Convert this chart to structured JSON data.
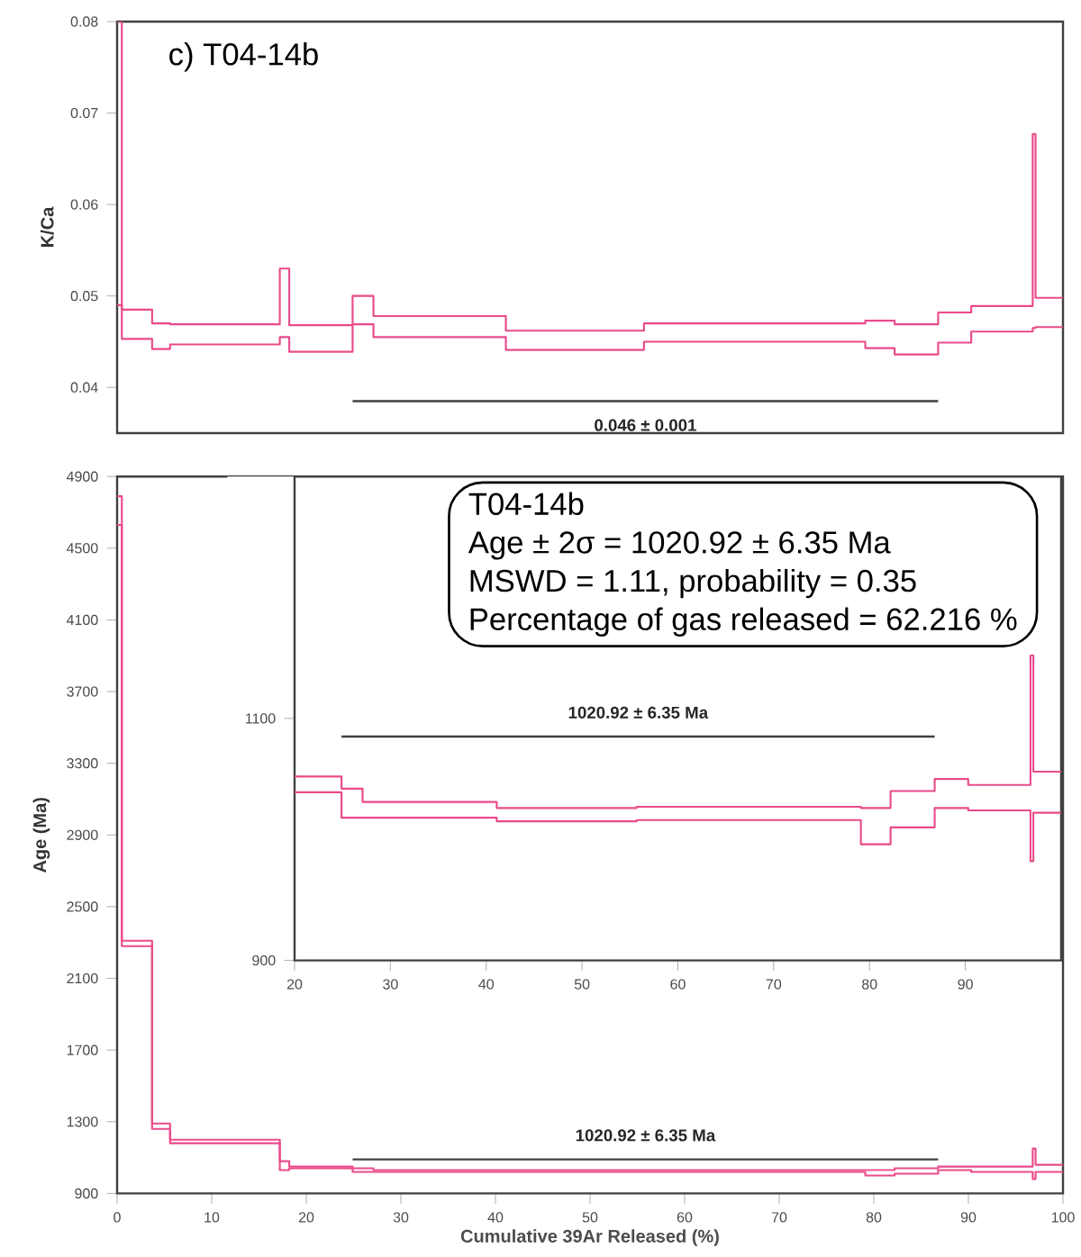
{
  "chart_data": [
    {
      "type": "step",
      "title": "c) T04-14b",
      "ylabel": "K/Ca",
      "xlim": [
        0,
        100
      ],
      "ylim": [
        0.035,
        0.08
      ],
      "yticks": [
        0.04,
        0.05,
        0.06,
        0.07,
        0.08
      ],
      "tick_labels": "y",
      "series": [
        {
          "color": "#e94b8a",
          "x": [
            0,
            0.5,
            3.7,
            5.6,
            17.2,
            18.2,
            24.9,
            27.1,
            41.1,
            55.7,
            79.1,
            82.2,
            86.8,
            90.3,
            96.8,
            97.1,
            100
          ],
          "values": [
            0.049,
            0.0453,
            0.0442,
            0.0447,
            0.0455,
            0.0439,
            0.0469,
            0.0455,
            0.0441,
            0.045,
            0.0443,
            0.0436,
            0.0449,
            0.0461,
            0.0465,
            0.0466,
            0.0466
          ]
        },
        {
          "color": "#e94b8a",
          "x": [
            0,
            0.5,
            3.7,
            5.6,
            17.2,
            18.2,
            24.9,
            27.1,
            41.1,
            55.7,
            79.1,
            82.2,
            86.8,
            90.3,
            96.8,
            97.1,
            100
          ],
          "values": [
            0.08,
            0.0485,
            0.047,
            0.0469,
            0.053,
            0.0468,
            0.05,
            0.0478,
            0.0462,
            0.047,
            0.0473,
            0.0469,
            0.0482,
            0.0489,
            0.0677,
            0.0498,
            0.0498
          ]
        },
        {
          "type": "line",
          "color": "#404040",
          "x": [
            24.9,
            86.8
          ],
          "values": [
            0.0385,
            0.0385
          ]
        }
      ],
      "annotations": [
        "0.046 ± 0.001"
      ]
    },
    {
      "type": "step",
      "xlabel": "Cumulative 39Ar Released (%)",
      "ylabel": "Age (Ma)",
      "xlim": [
        0,
        100
      ],
      "ylim": [
        900,
        4900
      ],
      "xticks": [
        0,
        10,
        20,
        30,
        40,
        50,
        60,
        70,
        80,
        90,
        100
      ],
      "yticks": [
        900,
        1300,
        1700,
        2100,
        2500,
        2900,
        3300,
        3700,
        4100,
        4500,
        4900
      ],
      "series": [
        {
          "color": "#e94b8a",
          "x": [
            0,
            0.5,
            3.7,
            5.6,
            17.2,
            18.2,
            24.9,
            27.1,
            41.1,
            55.7,
            79.1,
            82.2,
            86.8,
            90.3,
            96.8,
            97.1,
            100
          ],
          "values": [
            4630,
            2280,
            1260,
            1180,
            1030,
            1040,
            1020,
            1020,
            1020,
            1020,
            1000,
            1010,
            1030,
            1020,
            980,
            1020,
            1020
          ]
        },
        {
          "color": "#e94b8a",
          "x": [
            0,
            0.5,
            3.7,
            5.6,
            17.2,
            18.2,
            24.9,
            27.1,
            41.1,
            55.7,
            79.1,
            82.2,
            86.8,
            90.3,
            96.8,
            97.1,
            100
          ],
          "values": [
            4790,
            2310,
            1290,
            1200,
            1080,
            1050,
            1040,
            1030,
            1030,
            1030,
            1030,
            1040,
            1050,
            1050,
            1150,
            1060,
            1060
          ]
        },
        {
          "type": "line",
          "color": "#404040",
          "x": [
            24.9,
            86.8
          ],
          "values": [
            1090,
            1090
          ]
        }
      ],
      "annotations": [
        "1020.92 ± 6.35 Ma"
      ]
    },
    {
      "type": "step",
      "xlim": [
        20,
        100
      ],
      "ylim": [
        900,
        1300
      ],
      "xticks": [
        20,
        30,
        40,
        50,
        60,
        70,
        80,
        90
      ],
      "yticks": [
        900,
        1100
      ],
      "series": [
        {
          "color": "#e94b8a",
          "x": [
            20,
            24.9,
            27.1,
            41.1,
            55.7,
            79.1,
            82.2,
            86.8,
            90.3,
            96.8,
            97.1,
            100
          ],
          "values": [
            1039,
            1018,
            1018,
            1015,
            1016,
            996,
            1010,
            1026,
            1024,
            982,
            1022,
            1022
          ]
        },
        {
          "color": "#e94b8a",
          "x": [
            20,
            24.9,
            27.1,
            41.1,
            55.7,
            79.1,
            82.2,
            86.8,
            90.3,
            96.8,
            97.1,
            100
          ],
          "values": [
            1052,
            1042,
            1031,
            1026,
            1027,
            1026,
            1040,
            1050,
            1045,
            1152,
            1056,
            1056
          ]
        },
        {
          "type": "line",
          "color": "#404040",
          "x": [
            24.9,
            86.8
          ],
          "values": [
            1085,
            1085
          ]
        }
      ],
      "annotations": [
        "1020.92 ± 6.35 Ma",
        "T04-14b",
        "Age ± 2σ = 1020.92 ± 6.35 Ma",
        "MSWD = 1.11, probability = 0.35",
        "Percentage of gas released = 62.216 %"
      ]
    }
  ]
}
